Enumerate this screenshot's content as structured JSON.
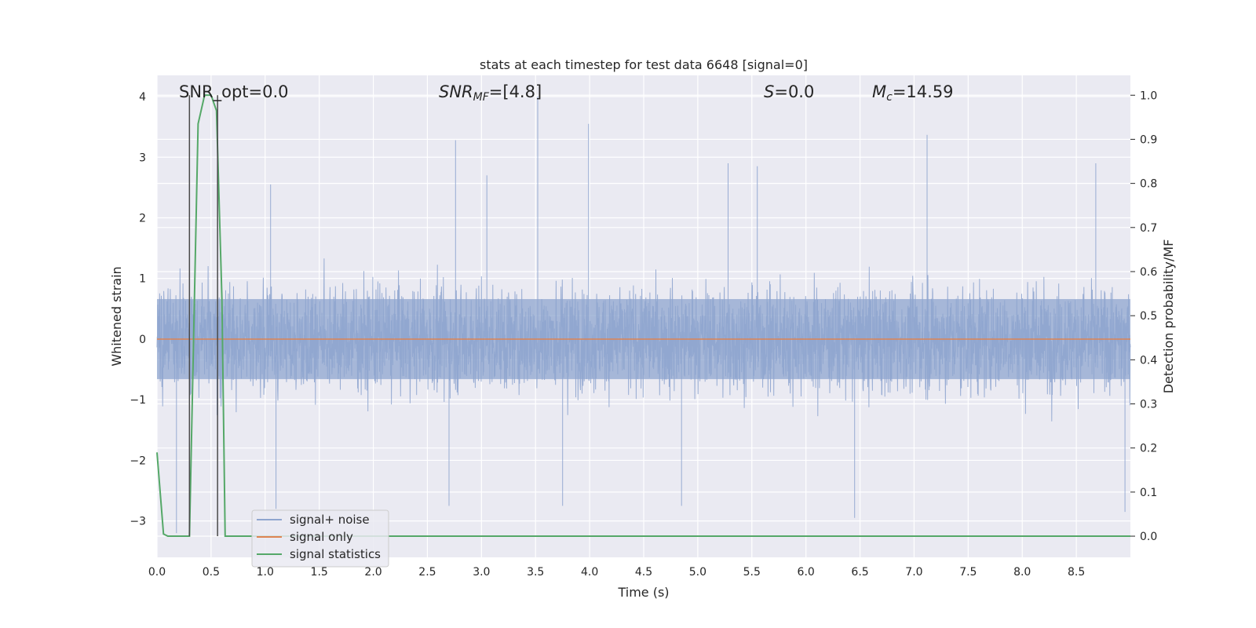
{
  "chart_data": {
    "type": "line",
    "title": "stats at each timestep for test data 6648 [signal=0]",
    "xlabel": "Time (s)",
    "ylabel_left": "Whitened strain",
    "ylabel_right": "Detection probability/MF",
    "xlim": [
      0,
      9.0
    ],
    "ylim_left": [
      -3.6,
      4.35
    ],
    "ylim_right": [
      -0.048,
      1.045
    ],
    "x_ticks": [
      0.0,
      0.5,
      1.0,
      1.5,
      2.0,
      2.5,
      3.0,
      3.5,
      4.0,
      4.5,
      5.0,
      5.5,
      6.0,
      6.5,
      7.0,
      7.5,
      8.0,
      8.5
    ],
    "x_tick_labels": [
      "0.0",
      "0.5",
      "1.0",
      "1.5",
      "2.0",
      "2.5",
      "3.0",
      "3.5",
      "4.0",
      "4.5",
      "5.0",
      "5.5",
      "6.0",
      "6.5",
      "7.0",
      "7.5",
      "8.0",
      "8.5"
    ],
    "y_left_ticks": [
      -3,
      -2,
      -1,
      0,
      1,
      2,
      3,
      4
    ],
    "y_left_tick_labels": [
      "−3",
      "−2",
      "−1",
      "0",
      "1",
      "2",
      "3",
      "4"
    ],
    "y_right_ticks": [
      0.0,
      0.1,
      0.2,
      0.3,
      0.4,
      0.5,
      0.6,
      0.7,
      0.8,
      0.9,
      1.0
    ],
    "y_right_tick_labels": [
      "0.0",
      "0.1",
      "0.2",
      "0.3",
      "0.4",
      "0.5",
      "0.6",
      "0.7",
      "0.8",
      "0.9",
      "1.0"
    ],
    "grid": true,
    "legend_position": "lower-left",
    "annotations": {
      "snr_opt": "SNR_opt=0.0",
      "snr_mf_main": "SNR",
      "snr_mf_sub": "MF",
      "snr_mf_value": "=[4.8]",
      "s_main": "S",
      "s_value": "=0.0",
      "mc_main": "M",
      "mc_sub": "c",
      "mc_value": "=14.59"
    },
    "series": [
      {
        "name": "signal+ noise",
        "color": "#8fa5cf",
        "axis": "left",
        "kind": "noise",
        "x_range": [
          0,
          9.0
        ],
        "envelope_typical": [
          -1.1,
          1.1
        ],
        "peaks": [
          {
            "x": 2.76,
            "y": 3.28
          },
          {
            "x": 3.52,
            "y": 4.0
          },
          {
            "x": 3.99,
            "y": 3.55
          },
          {
            "x": 7.12,
            "y": 3.37
          },
          {
            "x": 8.68,
            "y": 2.9
          },
          {
            "x": 1.05,
            "y": 2.55
          },
          {
            "x": 3.05,
            "y": 2.7
          },
          {
            "x": 5.55,
            "y": 2.85
          },
          {
            "x": 5.28,
            "y": 2.9
          },
          {
            "x": 6.45,
            "y": -2.95
          },
          {
            "x": 0.18,
            "y": -3.2
          },
          {
            "x": 3.75,
            "y": -2.75
          },
          {
            "x": 2.7,
            "y": -2.75
          },
          {
            "x": 4.85,
            "y": -2.75
          },
          {
            "x": 1.1,
            "y": -2.8
          },
          {
            "x": 8.95,
            "y": -2.85
          }
        ]
      },
      {
        "name": "signal only",
        "color": "#dd8452",
        "axis": "left",
        "x": [
          0,
          9.0
        ],
        "y": [
          0,
          0
        ]
      },
      {
        "name": "signal statistics",
        "color": "#55a868",
        "axis": "right",
        "x": [
          0.0,
          0.06,
          0.1,
          0.3,
          0.38,
          0.44,
          0.5,
          0.55,
          0.6,
          0.63,
          0.7,
          9.0
        ],
        "y": [
          0.19,
          0.005,
          0.0,
          0.0,
          0.935,
          1.0,
          1.0,
          0.965,
          0.54,
          0.0,
          0.0,
          0.0
        ]
      }
    ],
    "markers": [
      {
        "x": 0.3,
        "y_bottom": 0.0,
        "y_top": 1.0,
        "color": "#4a4a4a"
      },
      {
        "x": 0.56,
        "y_bottom": 0.0,
        "y_top": 1.0,
        "color": "#4a4a4a"
      }
    ]
  }
}
